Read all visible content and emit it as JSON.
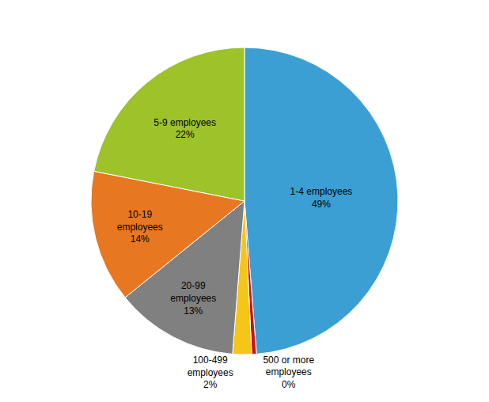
{
  "chart_data": {
    "type": "pie",
    "values": [
      49,
      0.5,
      2,
      13,
      14,
      22
    ],
    "value_labels": [
      "1-4 employees\n49%",
      "500 or more\nemployees\n0%",
      "100-499\nemployees\n2%",
      "20-99\nemployees\n13%",
      "10-19\nemployees\n14%",
      "5-9 employees\n22%"
    ],
    "colors": [
      "#3b9fd4",
      "#cc1111",
      "#f5c518",
      "#808080",
      "#e87722",
      "#9dc22a"
    ],
    "data_labels": true
  }
}
